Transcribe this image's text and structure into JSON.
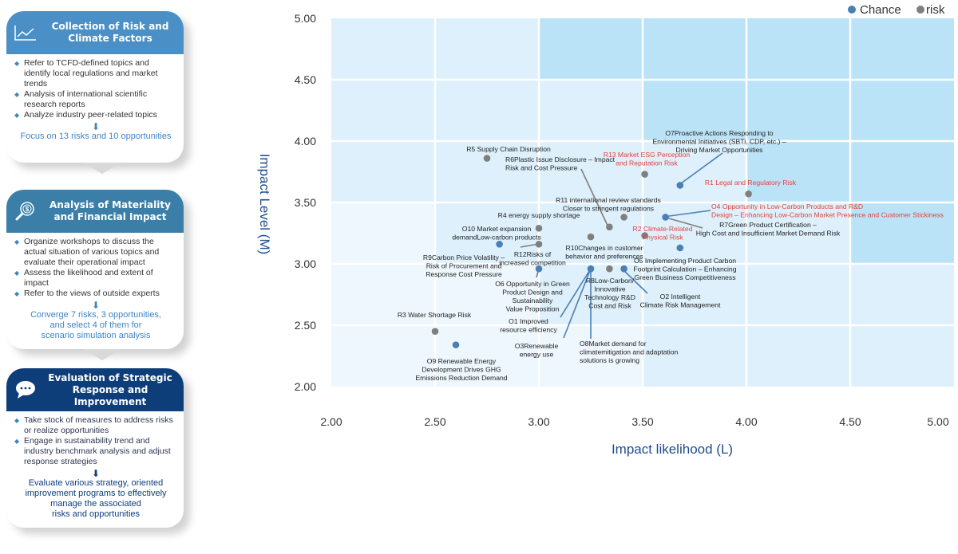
{
  "cards": [
    {
      "title_lines": [
        "Collection of Risk and",
        "Climate Factors"
      ],
      "icon": "line-chart-icon",
      "header_color": "#4a90c6",
      "bullets": [
        "Refer to TCFD-defined topics and identify local regulations and market trends",
        "Analysis of international scientific research reports",
        "Analyze industry peer-related topics"
      ],
      "conclusion_lines": [
        "Focus on 13 risks and 10 opportunities"
      ]
    },
    {
      "title_lines": [
        "Analysis of Materiality",
        "and Financial Impact"
      ],
      "icon": "magnifier-dollar-icon",
      "header_color": "#3b7fa8",
      "bullets": [
        "Organize workshops to discuss the actual situation of various topics and evaluate their operational impact",
        "Assess the likelihood and extent of impact",
        "Refer to the views of outside experts"
      ],
      "conclusion_lines": [
        "Converge 7 risks, 3 opportunities,",
        "and select 4 of them for",
        "scenario simulation analysis"
      ]
    },
    {
      "title_lines": [
        "Evaluation of Strategic",
        "Response and Improvement"
      ],
      "icon": "chat-bubble-icon",
      "header_color": "#0d3e7a",
      "bullets": [
        "Take stock of measures to address risks or realize opportunities",
        "Engage in sustainability trend and industry benchmark analysis and adjust response strategies"
      ],
      "conclusion_lines": [
        "Evaluate various strategy, oriented",
        "improvement programs to effectively",
        "manage the associated",
        "risks and opportunities"
      ]
    }
  ],
  "chart_data": {
    "type": "scatter",
    "title": "",
    "xlabel": "Impact likelihood (L)",
    "ylabel": "Impact Level (M)",
    "xlim": [
      2.0,
      5.0
    ],
    "ylim": [
      2.0,
      5.0
    ],
    "x_ticks": [
      "2.00",
      "2.50",
      "3.00",
      "3.50",
      "4.00",
      "4.50",
      "5.00"
    ],
    "y_ticks": [
      "5.00",
      "4.50",
      "4.00",
      "3.50",
      "3.00",
      "2.50",
      "2.00"
    ],
    "grid": true,
    "legend": {
      "position": "top-right",
      "entries": [
        {
          "name": "Chance",
          "color": "#4a7fb5"
        },
        {
          "name": "risk",
          "color": "#7f7f7f"
        }
      ]
    },
    "zone_colors": {
      "high": "#bbe3f7",
      "medium": "#ddf0fb",
      "low": "#eef7fd"
    },
    "zones": [
      [
        "medium",
        "medium",
        "high",
        "high",
        "high",
        "high"
      ],
      [
        "medium",
        "medium",
        "medium",
        "high",
        "high",
        "high"
      ],
      [
        "medium",
        "medium",
        "medium",
        "medium",
        "high",
        "high"
      ],
      [
        "low",
        "medium",
        "medium",
        "medium",
        "medium",
        "high"
      ],
      [
        "low",
        "low",
        "medium",
        "medium",
        "medium",
        "medium"
      ],
      [
        "low",
        "low",
        "low",
        "medium",
        "medium",
        "medium"
      ]
    ],
    "colors": {
      "chance": "#4a7fb5",
      "risk": "#7f7f7f",
      "highlight_text": "#e2443a",
      "text": "#222222"
    },
    "points": [
      {
        "id": "p-r6",
        "series": "risk",
        "x": 2.75,
        "y": 3.86
      },
      {
        "id": "p-r13",
        "series": "risk",
        "x": 3.51,
        "y": 3.73
      },
      {
        "id": "p-o7",
        "series": "chance",
        "x": 3.68,
        "y": 3.64
      },
      {
        "id": "p-r1",
        "series": "risk",
        "x": 4.01,
        "y": 3.57
      },
      {
        "id": "p-r11a",
        "series": "risk",
        "x": 3.41,
        "y": 3.38
      },
      {
        "id": "p-r11",
        "series": "risk",
        "x": 3.34,
        "y": 3.3
      },
      {
        "id": "p-o4",
        "series": "chance",
        "x": 3.61,
        "y": 3.38
      },
      {
        "id": "p-r4",
        "series": "risk",
        "x": 3.0,
        "y": 3.29
      },
      {
        "id": "p-o10",
        "series": "chance",
        "x": 2.81,
        "y": 3.16
      },
      {
        "id": "p-r12",
        "series": "risk",
        "x": 3.0,
        "y": 3.16
      },
      {
        "id": "p-r10",
        "series": "risk",
        "x": 3.25,
        "y": 3.22
      },
      {
        "id": "p-r2",
        "series": "risk",
        "x": 3.51,
        "y": 3.23
      },
      {
        "id": "p-o5",
        "series": "chance",
        "x": 3.68,
        "y": 3.13
      },
      {
        "id": "p-o6",
        "series": "chance",
        "x": 3.0,
        "y": 2.96
      },
      {
        "id": "p-o1o3o8",
        "series": "chance",
        "x": 3.25,
        "y": 2.96
      },
      {
        "id": "p-r8",
        "series": "risk",
        "x": 3.34,
        "y": 2.96
      },
      {
        "id": "p-o2",
        "series": "chance",
        "x": 3.41,
        "y": 2.96
      },
      {
        "id": "p-r3",
        "series": "risk",
        "x": 2.5,
        "y": 2.45
      },
      {
        "id": "p-o9",
        "series": "chance",
        "x": 2.6,
        "y": 2.34
      }
    ],
    "annotations": [
      {
        "id": "R5",
        "color": "text",
        "lines": [
          "R5 Supply Chain Disruption"
        ]
      },
      {
        "id": "R6",
        "color": "text",
        "lines": [
          "R6Plastic Issue Disclosure – Impact",
          "Risk and Cost Pressure"
        ]
      },
      {
        "id": "R13",
        "color": "highlight",
        "lines": [
          "R13 Market ESG Perception",
          "and Reputation Risk"
        ]
      },
      {
        "id": "O7",
        "color": "text",
        "lines": [
          "O7Proactive Actions Responding to",
          "Environmental Initiatives (SBTi, CDP, etc.) –",
          "Driving Market Opportunities"
        ]
      },
      {
        "id": "R1",
        "color": "highlight",
        "lines": [
          "R1 Legal and Regulatory Risk"
        ]
      },
      {
        "id": "R11",
        "color": "text",
        "lines": [
          "R11 international review standards",
          "Closer to stringent regulations"
        ]
      },
      {
        "id": "O4",
        "color": "highlight",
        "lines": [
          "O4 Opportunity in Low-Carbon Products and R&D",
          "Design – Enhancing Low-Carbon Market Presence and Customer Stickiness"
        ]
      },
      {
        "id": "R7",
        "color": "text",
        "lines": [
          "R7Green Product Certification –",
          "High Cost and Insufficient Market Demand Risk"
        ]
      },
      {
        "id": "R4",
        "color": "text",
        "lines": [
          "R4 energy supply shortage"
        ]
      },
      {
        "id": "O10",
        "color": "text",
        "lines": [
          "O10 Market expansion",
          "demandLow-carbon products"
        ]
      },
      {
        "id": "R2",
        "color": "highlight",
        "lines": [
          "R2 Climate-Related",
          "Physical Risk"
        ]
      },
      {
        "id": "R10",
        "color": "text",
        "lines": [
          "R10Changes in customer",
          "behavior and preferences"
        ]
      },
      {
        "id": "R12",
        "color": "text",
        "lines": [
          "R12Risks of",
          "increased competition"
        ]
      },
      {
        "id": "R9",
        "color": "text",
        "lines": [
          "R9Carbon Price Volatility –",
          "Risk of Procurement and",
          "Response Cost Pressure"
        ]
      },
      {
        "id": "O5",
        "color": "text",
        "lines": [
          "O5 Implementing Product Carbon",
          "Footprint Calculation – Enhancing",
          "Green Business Competitiveness"
        ]
      },
      {
        "id": "O6",
        "color": "text",
        "lines": [
          "O6 Opportunity in Green",
          "Product Design and",
          "Sustainability",
          "Value Proposition"
        ]
      },
      {
        "id": "R8",
        "color": "text",
        "lines": [
          "R8Low-Carbon/",
          "Innovative",
          "Technology R&D",
          "Cost and Risk"
        ]
      },
      {
        "id": "O2",
        "color": "text",
        "lines": [
          "O2 Intelligent",
          "Climate Risk Management"
        ]
      },
      {
        "id": "O1",
        "color": "text",
        "lines": [
          "O1 Improved",
          "resource efficiency"
        ]
      },
      {
        "id": "R3",
        "color": "text",
        "lines": [
          "R3 Water Shortage Risk"
        ]
      },
      {
        "id": "O3",
        "color": "text",
        "lines": [
          "O3Renewable",
          "energy use"
        ]
      },
      {
        "id": "O8",
        "color": "text",
        "lines": [
          "O8Market demand for",
          "climatemitigation and adaptation",
          "solutions is growing"
        ]
      },
      {
        "id": "O9",
        "color": "text",
        "lines": [
          "O9 Renewable Energy",
          "Development Drives GHG",
          "Emissions Reduction Demand"
        ]
      }
    ]
  }
}
